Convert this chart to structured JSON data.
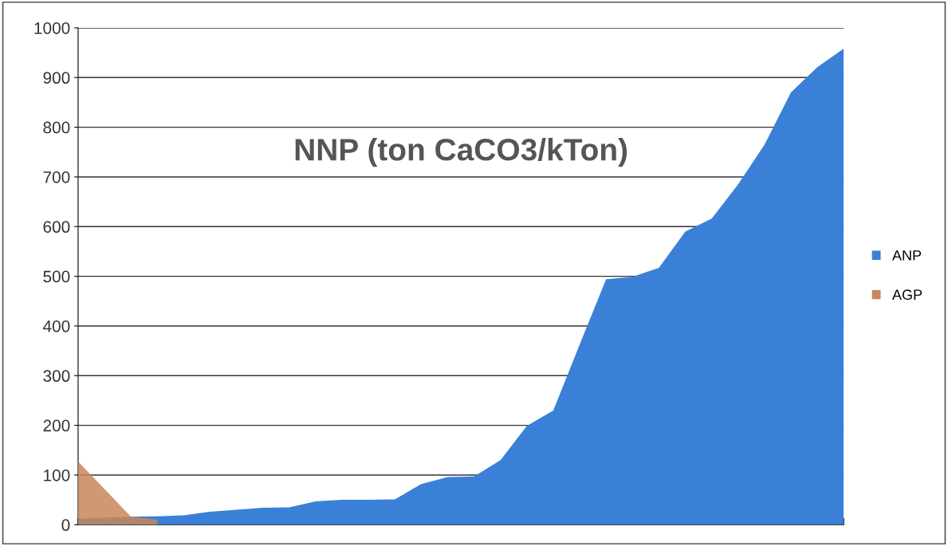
{
  "chart_data": {
    "type": "area",
    "title": "NNP (ton CaCO3/kTon)",
    "categories": [
      null,
      null,
      null,
      null,
      null,
      null,
      null,
      null,
      null,
      null,
      null,
      null,
      null,
      null,
      null,
      null,
      null,
      null,
      null,
      null,
      null,
      null,
      null,
      null,
      null,
      null,
      null,
      null,
      null,
      null
    ],
    "series": [
      {
        "name": "ANP",
        "color": "#3a80d6",
        "values": [
          12,
          14,
          16,
          17,
          19,
          26,
          30,
          34,
          35,
          47,
          50,
          50,
          51,
          82,
          96,
          97,
          130,
          199,
          230,
          363,
          494,
          499,
          517,
          590,
          616,
          685,
          765,
          870,
          921,
          958
        ]
      },
      {
        "name": "AGP",
        "color": "#c8875a",
        "values": [
          127,
          72,
          16,
          10,
          null,
          null,
          null,
          null,
          null,
          null,
          null,
          null,
          null,
          null,
          null,
          null,
          null,
          null,
          null,
          null,
          null,
          null,
          null,
          null,
          null,
          null,
          null,
          null,
          null,
          null
        ]
      }
    ],
    "ylim": [
      0,
      1000
    ],
    "yticks": [
      0,
      100,
      200,
      300,
      400,
      500,
      600,
      700,
      800,
      900,
      1000
    ],
    "grid": "y",
    "legend": "right"
  }
}
